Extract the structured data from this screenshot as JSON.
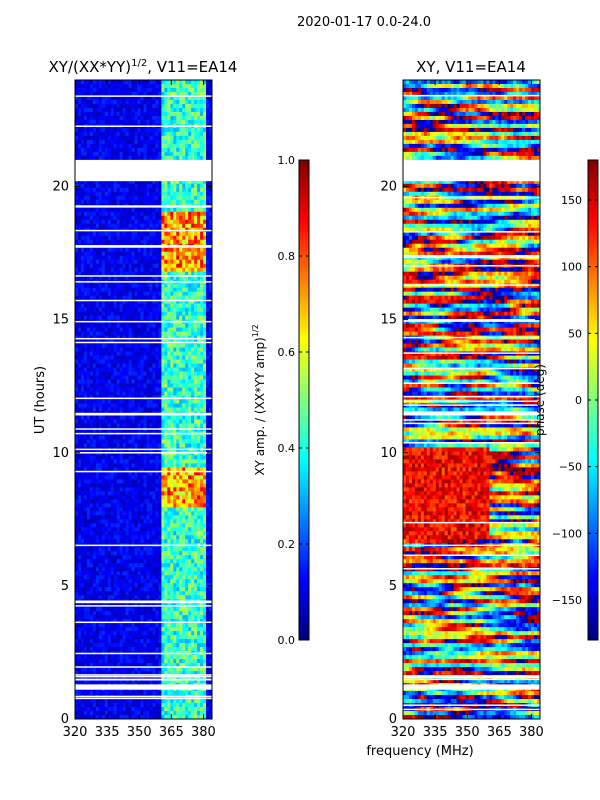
{
  "figure": {
    "suptitle": "2020-01-17 0.0-24.0",
    "shared_xlabel": "frequency (MHz)"
  },
  "chart_data": [
    {
      "type": "heatmap",
      "title": "XY/(XX*YY)^{1/2}, V11=EA14",
      "title_main": "XY/(XX*YY)",
      "title_sup": "1/2",
      "title_tail": ", V11=EA14",
      "xlabel": "frequency (MHz)",
      "ylabel": "UT (hours)",
      "xlim": [
        320,
        384
      ],
      "ylim": [
        0,
        24
      ],
      "xticks": [
        320,
        335,
        350,
        365,
        380
      ],
      "yticks": [
        0,
        5,
        10,
        15,
        20
      ],
      "colorbar": {
        "label": "XY amp. / (XX*YY amp)^{1/2}",
        "label_main": "XY amp. / (XX*YY amp)",
        "label_sup": "1/2",
        "range": [
          0.0,
          1.0
        ],
        "ticks": [
          "0.0",
          "0.2",
          "0.4",
          "0.6",
          "0.8",
          "1.0"
        ],
        "tick_values": [
          0.0,
          0.2,
          0.4,
          0.6,
          0.8,
          1.0
        ],
        "colormap": "jet"
      },
      "flagged_hours": [
        [
          20.2,
          21.0
        ],
        [
          1.1,
          1.3
        ],
        [
          17.7,
          17.8
        ],
        [
          11.4,
          11.5
        ],
        [
          4.35,
          4.45
        ],
        [
          6.5,
          6.55
        ]
      ],
      "high_amp_band_mhz": [
        361,
        381
      ]
    },
    {
      "type": "heatmap",
      "title": "XY, V11=EA14",
      "xlabel": "frequency (MHz)",
      "ylabel": "",
      "xlim": [
        320,
        384
      ],
      "ylim": [
        0,
        24
      ],
      "xticks": [
        320,
        335,
        350,
        365,
        380
      ],
      "yticks": [
        0,
        5,
        10,
        15,
        20
      ],
      "colorbar": {
        "label": "phase (deg)",
        "range": [
          -180,
          180
        ],
        "ticks": [
          "−150",
          "−100",
          "−50",
          "0",
          "50",
          "100",
          "150"
        ],
        "tick_values": [
          -150,
          -100,
          -50,
          0,
          50,
          100,
          150
        ],
        "colormap": "jet"
      },
      "flagged_hours": [
        [
          20.2,
          21.0
        ],
        [
          1.1,
          1.3
        ],
        [
          6.5,
          6.55
        ],
        [
          11.4,
          11.5
        ]
      ]
    }
  ],
  "colors": {
    "jet": [
      "#00007f",
      "#0000ff",
      "#007fff",
      "#00ffff",
      "#7fff7f",
      "#ffff00",
      "#ff7f00",
      "#ff0000",
      "#7f0000"
    ]
  }
}
